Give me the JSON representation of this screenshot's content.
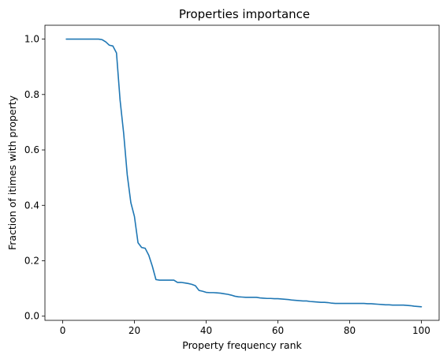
{
  "chart_data": {
    "type": "line",
    "title": "Properties importance",
    "xlabel": "Property frequency rank",
    "ylabel": "Fraction of itimes with property",
    "xlim": [
      -4.95,
      104.95
    ],
    "ylim": [
      -0.015,
      1.05
    ],
    "xticks": [
      0,
      20,
      40,
      60,
      80,
      100
    ],
    "xtick_labels": [
      "0",
      "20",
      "40",
      "60",
      "80",
      "100"
    ],
    "yticks": [
      0.0,
      0.2,
      0.4,
      0.6,
      0.8,
      1.0
    ],
    "ytick_labels": [
      "0.0",
      "0.2",
      "0.4",
      "0.6",
      "0.8",
      "1.0"
    ],
    "grid": false,
    "series": [
      {
        "color": "#1f77b4",
        "x": [
          1,
          2,
          3,
          4,
          5,
          6,
          7,
          8,
          9,
          10,
          11,
          12,
          13,
          14,
          15,
          16,
          17,
          18,
          19,
          20,
          21,
          22,
          23,
          24,
          25,
          26,
          27,
          28,
          29,
          30,
          31,
          32,
          33,
          34,
          35,
          36,
          37,
          38,
          39,
          40,
          41,
          42,
          43,
          44,
          45,
          46,
          47,
          48,
          49,
          50,
          51,
          52,
          53,
          54,
          55,
          56,
          57,
          58,
          59,
          60,
          61,
          62,
          63,
          64,
          65,
          66,
          67,
          68,
          69,
          70,
          71,
          72,
          73,
          74,
          75,
          76,
          77,
          78,
          79,
          80,
          81,
          82,
          83,
          84,
          85,
          86,
          87,
          88,
          89,
          90,
          91,
          92,
          93,
          94,
          95,
          96,
          97,
          98,
          99,
          100
        ],
        "y": [
          1.0,
          1.0,
          1.0,
          1.0,
          1.0,
          1.0,
          1.0,
          1.0,
          1.0,
          1.0,
          0.998,
          0.99,
          0.978,
          0.975,
          0.95,
          0.78,
          0.66,
          0.51,
          0.41,
          0.36,
          0.265,
          0.248,
          0.245,
          0.22,
          0.18,
          0.132,
          0.13,
          0.13,
          0.13,
          0.13,
          0.13,
          0.122,
          0.122,
          0.12,
          0.118,
          0.115,
          0.11,
          0.093,
          0.09,
          0.086,
          0.085,
          0.085,
          0.084,
          0.083,
          0.081,
          0.079,
          0.076,
          0.072,
          0.07,
          0.069,
          0.068,
          0.068,
          0.068,
          0.068,
          0.066,
          0.065,
          0.064,
          0.064,
          0.063,
          0.063,
          0.062,
          0.061,
          0.06,
          0.058,
          0.057,
          0.056,
          0.055,
          0.055,
          0.053,
          0.052,
          0.051,
          0.05,
          0.05,
          0.049,
          0.047,
          0.046,
          0.046,
          0.046,
          0.046,
          0.046,
          0.046,
          0.046,
          0.046,
          0.046,
          0.045,
          0.045,
          0.044,
          0.043,
          0.042,
          0.041,
          0.041,
          0.04,
          0.04,
          0.04,
          0.04,
          0.039,
          0.038,
          0.036,
          0.035,
          0.034
        ]
      }
    ]
  }
}
